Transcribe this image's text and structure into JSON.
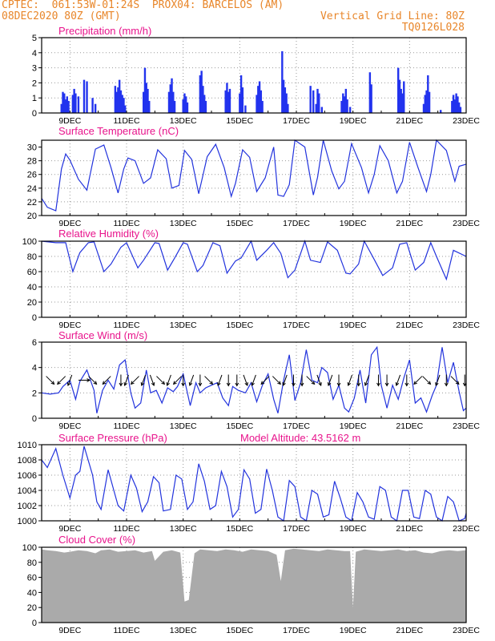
{
  "header": {
    "line1": "CPTEC:  061:53W-01:24S  PROX04: BARCELOS (AM)",
    "line2_left": "08DEC2020 80Z (GMT)",
    "line2_right": "Vertical Grid Line: 80Z",
    "line3_right": "TQ0126L028"
  },
  "colors": {
    "header": "#e8862a",
    "title": "#e8148c",
    "line": "#2233dd",
    "bar": "#2233ee",
    "cloud": "#aaaaaa",
    "arrow": "#000000"
  },
  "x_ticks": [
    "9DEC",
    "11DEC",
    "13DEC",
    "15DEC",
    "17DEC",
    "19DEC",
    "21DEC",
    "23DEC"
  ],
  "chart_data": [
    {
      "type": "bar",
      "title": "Precipitation (mm/h)",
      "x_days": [
        8.0,
        23.0
      ],
      "ylim": [
        0,
        5
      ],
      "yticks": [
        "0",
        "1",
        "2",
        "3",
        "4",
        "5"
      ],
      "x": [
        8.7,
        8.75,
        8.8,
        8.85,
        8.9,
        8.95,
        9.1,
        9.15,
        9.2,
        9.3,
        9.5,
        9.6,
        9.8,
        9.9,
        10.6,
        10.65,
        10.7,
        10.75,
        10.8,
        10.85,
        10.9,
        10.95,
        11.6,
        11.65,
        11.7,
        11.75,
        11.8,
        12.5,
        12.55,
        12.6,
        12.65,
        12.7,
        13.0,
        13.05,
        13.1,
        13.15,
        13.6,
        13.65,
        13.7,
        13.75,
        13.8,
        14.5,
        14.55,
        14.6,
        14.65,
        15.0,
        15.05,
        15.1,
        15.2,
        15.6,
        15.65,
        15.7,
        15.75,
        15.8,
        16.5,
        16.55,
        16.6,
        16.65,
        16.7,
        17.5,
        17.6,
        17.7,
        17.75,
        17.8,
        17.9,
        18.6,
        18.65,
        18.7,
        18.75,
        18.8,
        18.9,
        19.6,
        19.65,
        20.6,
        20.65,
        20.7,
        20.75,
        20.8,
        21.5,
        21.55,
        21.6,
        21.65,
        21.7,
        22.1,
        22.5,
        22.55,
        22.6,
        22.65,
        22.7,
        22.75,
        22.8
      ],
      "values": [
        0.6,
        1.4,
        1.3,
        0.9,
        1.1,
        0.8,
        1.2,
        1.6,
        1.3,
        1.1,
        2.2,
        2.1,
        1.0,
        0.6,
        1.8,
        1.4,
        1.7,
        2.2,
        1.5,
        1.2,
        1.0,
        0.5,
        1.4,
        3.0,
        2.0,
        1.6,
        0.8,
        1.4,
        1.9,
        2.3,
        1.4,
        0.8,
        0.9,
        1.3,
        1.1,
        0.7,
        2.5,
        2.8,
        1.8,
        1.2,
        0.8,
        1.5,
        2.0,
        1.4,
        1.6,
        1.3,
        2.5,
        1.7,
        0.5,
        1.2,
        1.8,
        2.1,
        1.5,
        0.8,
        4.1,
        2.2,
        1.7,
        1.3,
        0.6,
        1.8,
        1.5,
        0.6,
        1.6,
        1.3,
        0.4,
        0.8,
        1.3,
        1.1,
        1.6,
        0.9,
        0.4,
        2.7,
        1.9,
        3.0,
        2.2,
        1.6,
        1.3,
        2.1,
        0.6,
        1.2,
        1.5,
        2.5,
        1.4,
        0.2,
        0.8,
        1.2,
        0.9,
        1.3,
        1.1,
        0.7,
        0.4
      ]
    },
    {
      "type": "line",
      "title": "Surface Temperature (nC)",
      "x_days": [
        8.0,
        23.0
      ],
      "ylim": [
        20,
        31
      ],
      "yticks": [
        "20",
        "22",
        "24",
        "26",
        "28",
        "30"
      ],
      "x": [
        8,
        8.2,
        8.5,
        8.7,
        8.85,
        9,
        9.3,
        9.6,
        9.9,
        10.2,
        10.45,
        10.7,
        10.9,
        11.05,
        11.3,
        11.6,
        11.85,
        12.1,
        12.4,
        12.6,
        12.85,
        13.05,
        13.3,
        13.55,
        13.85,
        14.15,
        14.45,
        14.7,
        14.85,
        15.1,
        15.35,
        15.6,
        15.9,
        16.2,
        16.35,
        16.55,
        16.75,
        16.95,
        17.3,
        17.6,
        17.75,
        17.95,
        18.25,
        18.5,
        18.7,
        18.95,
        19.3,
        19.55,
        19.75,
        19.95,
        20.25,
        20.55,
        20.75,
        21,
        21.3,
        21.6,
        21.75,
        21.95,
        22.3,
        22.6,
        22.75,
        23
      ],
      "values": [
        22.5,
        21.2,
        20.7,
        26.8,
        29,
        28.1,
        25.3,
        23.7,
        29.7,
        30.3,
        27,
        23.3,
        26.8,
        28.4,
        28,
        24.7,
        25.5,
        29.6,
        28.3,
        24,
        24.4,
        29.5,
        28.2,
        23.2,
        28.6,
        30.4,
        27,
        22.8,
        24.7,
        29.6,
        28.5,
        23.5,
        25.5,
        30,
        23,
        22.8,
        24.5,
        31,
        30,
        23,
        25.6,
        31,
        26.5,
        23.9,
        25,
        30.5,
        27,
        23.3,
        26,
        30.2,
        28,
        23.3,
        25,
        30.7,
        27,
        23.5,
        26,
        31,
        29.5,
        25,
        27.2,
        27.5
      ]
    },
    {
      "type": "line",
      "title": "Relative Humidity (%)",
      "x_days": [
        8.0,
        23.0
      ],
      "ylim": [
        0,
        100
      ],
      "yticks": [
        "0",
        "20",
        "40",
        "60",
        "80",
        "100"
      ],
      "x": [
        8,
        8.5,
        8.85,
        9.1,
        9.35,
        9.65,
        9.85,
        10.2,
        10.45,
        10.8,
        11,
        11.4,
        11.6,
        12,
        12.15,
        12.45,
        12.7,
        13,
        13.15,
        13.5,
        13.7,
        14.05,
        14.3,
        14.55,
        14.85,
        15.05,
        15.4,
        15.6,
        15.95,
        16.2,
        16.45,
        16.7,
        16.95,
        17.3,
        17.5,
        17.85,
        18.1,
        18.45,
        18.75,
        18.9,
        19.2,
        19.4,
        19.75,
        20.05,
        20.4,
        20.65,
        20.9,
        21.2,
        21.5,
        21.75,
        21.95,
        22.3,
        22.55,
        23
      ],
      "values": [
        100,
        98,
        98,
        60,
        85,
        98,
        99,
        60,
        70,
        92,
        98,
        65,
        75,
        98,
        97,
        62,
        78,
        98,
        96,
        60,
        68,
        98,
        94,
        58,
        74,
        78,
        100,
        75,
        88,
        98,
        84,
        52,
        62,
        100,
        75,
        72,
        99,
        88,
        58,
        57,
        70,
        100,
        76,
        55,
        65,
        96,
        98,
        62,
        72,
        98,
        80,
        50,
        88,
        80
      ]
    },
    {
      "type": "line",
      "title": "Surface Wind (m/s)",
      "x_days": [
        8.0,
        23.0
      ],
      "ylim": [
        0,
        6
      ],
      "yticks": [
        "0",
        "2",
        "4",
        "6"
      ],
      "x": [
        8,
        8.3,
        8.6,
        8.75,
        9,
        9.2,
        9.35,
        9.6,
        9.85,
        9.95,
        10.15,
        10.35,
        10.55,
        10.75,
        10.95,
        11.15,
        11.3,
        11.5,
        11.7,
        11.85,
        12.05,
        12.25,
        12.45,
        12.65,
        12.8,
        13,
        13.25,
        13.45,
        13.6,
        13.8,
        14,
        14.2,
        14.4,
        14.6,
        14.75,
        14.95,
        15.2,
        15.4,
        15.6,
        15.8,
        16,
        16.2,
        16.35,
        16.55,
        16.75,
        16.95,
        17.15,
        17.35,
        17.55,
        17.75,
        17.9,
        18.1,
        18.3,
        18.5,
        18.7,
        18.85,
        19.05,
        19.25,
        19.45,
        19.65,
        19.85,
        20,
        20.2,
        20.4,
        20.6,
        20.8,
        21,
        21.2,
        21.4,
        21.6,
        21.8,
        21.95,
        22.15,
        22.35,
        22.55,
        22.75,
        22.9,
        23
      ],
      "values": [
        2,
        1.9,
        2,
        2.5,
        3,
        1.5,
        2.9,
        3.8,
        2.2,
        0.4,
        2.2,
        3,
        2.3,
        4.2,
        4.6,
        2,
        0.8,
        1.2,
        3.8,
        2,
        2.2,
        1.2,
        2.4,
        2.1,
        2.5,
        3.5,
        1,
        2.8,
        2,
        2.4,
        2.6,
        2.8,
        1.6,
        1,
        2.5,
        2.2,
        2,
        2.8,
        1.3,
        2.6,
        3.5,
        1.5,
        0.4,
        3,
        5,
        1.4,
        2.8,
        5.4,
        3,
        2.8,
        4,
        3.6,
        1.5,
        2.6,
        0.8,
        0.5,
        1.6,
        3.8,
        1.2,
        5,
        5.6,
        2.6,
        0.8,
        2.6,
        1.5,
        3.2,
        4.6,
        1.2,
        1.6,
        0.5,
        1.8,
        2.6,
        5.6,
        2.8,
        4.4,
        2.1,
        0.6,
        0.8
      ]
    },
    {
      "type": "line",
      "title": "Surface Pressure (hPa)",
      "annotation": "Model Altitude: 43.5162 m",
      "x_days": [
        8.0,
        23.0
      ],
      "ylim": [
        1000,
        1010
      ],
      "yticks": [
        "1000",
        "1002",
        "1004",
        "1006",
        "1008",
        "1010"
      ],
      "x": [
        8,
        8.2,
        8.5,
        8.75,
        9,
        9.2,
        9.35,
        9.5,
        9.8,
        9.95,
        10.1,
        10.35,
        10.55,
        10.7,
        10.9,
        11.15,
        11.35,
        11.55,
        11.75,
        11.95,
        12.15,
        12.3,
        12.55,
        12.75,
        12.95,
        13.15,
        13.35,
        13.55,
        13.75,
        13.95,
        14.15,
        14.35,
        14.55,
        14.75,
        14.95,
        15.15,
        15.35,
        15.55,
        15.75,
        15.95,
        16.15,
        16.35,
        16.55,
        16.75,
        16.95,
        17.15,
        17.35,
        17.55,
        17.75,
        17.95,
        18.15,
        18.35,
        18.55,
        18.75,
        18.95,
        19.15,
        19.35,
        19.55,
        19.75,
        19.95,
        20.15,
        20.35,
        20.55,
        20.75,
        20.95,
        21.15,
        21.35,
        21.55,
        21.75,
        21.95,
        22.15,
        22.35,
        22.55,
        22.75,
        22.95,
        23
      ],
      "values": [
        1008,
        1007,
        1009.5,
        1006,
        1003,
        1006,
        1006.5,
        1009.8,
        1006,
        1002.5,
        1001.5,
        1006.7,
        1004,
        1002,
        1001.3,
        1006,
        1004.3,
        1001.2,
        1002.5,
        1005.8,
        1005,
        1001.3,
        1001.5,
        1006,
        1005.5,
        1001.5,
        1002.5,
        1007.5,
        1005.2,
        1001.5,
        1002,
        1006.5,
        1004.5,
        1000.5,
        1001.5,
        1006.7,
        1005.5,
        1001,
        1001.5,
        1006.8,
        1004,
        1000.5,
        1000,
        1005.3,
        1004.5,
        1000.5,
        1000,
        1004,
        1003.5,
        1000.5,
        1000.8,
        1005.2,
        1003,
        1000.5,
        1000,
        1003.7,
        1002.5,
        1000.5,
        1000.2,
        1004.5,
        1004,
        1000.5,
        1000,
        1004,
        1004,
        1000.5,
        1000.3,
        1004,
        1003.5,
        1000.5,
        1000,
        1003.2,
        1002.5,
        1000,
        1000.3,
        1001
      ]
    },
    {
      "type": "area",
      "title": "Cloud Cover (%)",
      "x_days": [
        8.0,
        23.0
      ],
      "ylim": [
        0,
        100
      ],
      "yticks": [
        "0",
        "20",
        "40",
        "60",
        "80",
        "100"
      ],
      "x": [
        8,
        8.2,
        8.5,
        8.8,
        9,
        9.3,
        9.6,
        9.9,
        10.1,
        10.4,
        10.7,
        11,
        11.3,
        11.6,
        11.9,
        12,
        12.3,
        12.6,
        12.9,
        13.05,
        13.2,
        13.4,
        13.6,
        13.9,
        14.2,
        14.5,
        14.8,
        15.1,
        15.4,
        15.7,
        16,
        16.3,
        16.45,
        16.6,
        16.9,
        17.2,
        17.5,
        17.8,
        18.1,
        18.4,
        18.7,
        18.9,
        19,
        19.1,
        19.4,
        19.7,
        20,
        20.3,
        20.6,
        20.9,
        21.2,
        21.5,
        21.8,
        22.1,
        22.4,
        22.7,
        23
      ],
      "values": [
        97,
        96,
        95,
        93,
        94,
        96,
        95,
        92,
        96,
        97,
        94,
        95,
        96,
        93,
        95,
        82,
        94,
        96,
        93,
        28,
        30,
        92,
        97,
        96,
        95,
        97,
        96,
        94,
        97,
        96,
        95,
        90,
        55,
        96,
        98,
        97,
        96,
        95,
        97,
        96,
        95,
        95,
        20,
        94,
        97,
        96,
        95,
        96,
        97,
        95,
        96,
        93,
        92,
        95,
        96,
        95,
        96
      ]
    }
  ],
  "wind_arrows": {
    "x": [
      8.3,
      8.7,
      9.0,
      9.5,
      9.8,
      10.3,
      10.8,
      11.0,
      11.3,
      11.6,
      11.9,
      12.2,
      12.5,
      12.8,
      13.0,
      13.3,
      13.6,
      13.9,
      14.3,
      14.6,
      14.9,
      15.2,
      15.5,
      15.9,
      16.3,
      16.6,
      16.9,
      17.2,
      17.5,
      17.8,
      18.2,
      18.5,
      18.9,
      19.2,
      19.5,
      19.9,
      20.2,
      20.6,
      20.9,
      21.3,
      21.6,
      22.0,
      22.3,
      22.6,
      22.95
    ],
    "dir_deg": [
      135,
      225,
      200,
      90,
      135,
      225,
      180,
      200,
      225,
      200,
      160,
      135,
      200,
      225,
      180,
      200,
      180,
      135,
      200,
      180,
      180,
      160,
      200,
      225,
      135,
      200,
      180,
      180,
      135,
      160,
      200,
      180,
      200,
      180,
      200,
      180,
      180,
      200,
      180,
      225,
      135,
      200,
      180,
      135,
      180
    ]
  }
}
